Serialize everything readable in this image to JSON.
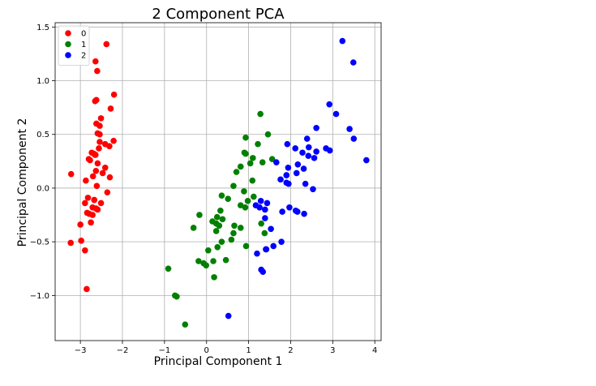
{
  "chart_data": {
    "type": "scatter",
    "title": "2 Component PCA",
    "xlabel": "Principal Component 1",
    "ylabel": "Principal Component 2",
    "xlim": [
      -3.6,
      4.15
    ],
    "ylim": [
      -1.42,
      1.54
    ],
    "xticks": [
      -3,
      -2,
      -1,
      0,
      1,
      2,
      3,
      4
    ],
    "xtick_labels": [
      "−3",
      "−2",
      "−1",
      "0",
      "1",
      "2",
      "3",
      "4"
    ],
    "yticks": [
      -1.0,
      -0.5,
      0.0,
      0.5,
      1.0,
      1.5
    ],
    "ytick_labels": [
      "−1.0",
      "−0.5",
      "0.0",
      "0.5",
      "1.0",
      "1.5"
    ],
    "grid": true,
    "legend_position": "top-left",
    "series": [
      {
        "name": "0",
        "color": "#ff0000",
        "points": [
          [
            -2.68,
            0.32
          ],
          [
            -2.71,
            -0.18
          ],
          [
            -2.89,
            -0.14
          ],
          [
            -2.75,
            -0.32
          ],
          [
            -2.73,
            0.33
          ],
          [
            -2.28,
            0.74
          ],
          [
            -2.82,
            -0.09
          ],
          [
            -2.63,
            0.16
          ],
          [
            -2.89,
            -0.58
          ],
          [
            -2.67,
            -0.11
          ],
          [
            -2.51,
            0.65
          ],
          [
            -2.61,
            0.02
          ],
          [
            -2.79,
            -0.24
          ],
          [
            -3.23,
            -0.51
          ],
          [
            -2.64,
            1.18
          ],
          [
            -2.38,
            1.34
          ],
          [
            -2.62,
            0.82
          ],
          [
            -2.65,
            0.31
          ],
          [
            -2.2,
            0.87
          ],
          [
            -2.59,
            0.51
          ],
          [
            -2.31,
            0.39
          ],
          [
            -2.54,
            0.43
          ],
          [
            -3.22,
            0.13
          ],
          [
            -2.3,
            0.1
          ],
          [
            -2.36,
            -0.04
          ],
          [
            -2.51,
            -0.14
          ],
          [
            -2.47,
            0.14
          ],
          [
            -2.56,
            0.37
          ],
          [
            -2.64,
            0.31
          ],
          [
            -2.63,
            -0.19
          ],
          [
            -2.59,
            -0.2
          ],
          [
            -2.41,
            0.41
          ],
          [
            -2.65,
            0.81
          ],
          [
            -2.6,
            1.09
          ],
          [
            -2.67,
            -0.11
          ],
          [
            -2.87,
            0.07
          ],
          [
            -2.62,
            0.6
          ],
          [
            -2.8,
            0.27
          ],
          [
            -2.98,
            -0.49
          ],
          [
            -2.59,
            0.23
          ],
          [
            -2.77,
            0.26
          ],
          [
            -2.85,
            -0.94
          ],
          [
            -3.0,
            -0.34
          ],
          [
            -2.41,
            0.19
          ],
          [
            -2.21,
            0.44
          ],
          [
            -2.71,
            -0.25
          ],
          [
            -2.54,
            0.5
          ],
          [
            -2.84,
            -0.23
          ],
          [
            -2.54,
            0.58
          ],
          [
            -2.7,
            0.11
          ]
        ]
      },
      {
        "name": "1",
        "color": "#008000",
        "points": [
          [
            1.28,
            0.69
          ],
          [
            0.93,
            0.32
          ],
          [
            1.46,
            0.5
          ],
          [
            0.18,
            -0.83
          ],
          [
            1.09,
            0.07
          ],
          [
            0.64,
            -0.42
          ],
          [
            1.1,
            0.28
          ],
          [
            -0.75,
            -1.0
          ],
          [
            1.04,
            0.23
          ],
          [
            -0.01,
            -0.72
          ],
          [
            -0.51,
            -1.27
          ],
          [
            0.51,
            -0.1
          ],
          [
            0.26,
            -0.55
          ],
          [
            0.98,
            -0.12
          ],
          [
            -0.17,
            -0.25
          ],
          [
            0.93,
            0.47
          ],
          [
            0.66,
            -0.35
          ],
          [
            0.23,
            -0.33
          ],
          [
            0.94,
            -0.54
          ],
          [
            0.04,
            -0.58
          ],
          [
            1.12,
            -0.08
          ],
          [
            0.36,
            -0.07
          ],
          [
            1.3,
            -0.33
          ],
          [
            0.92,
            -0.18
          ],
          [
            0.71,
            0.15
          ],
          [
            0.9,
            0.33
          ],
          [
            1.33,
            0.24
          ],
          [
            1.56,
            0.27
          ],
          [
            0.81,
            -0.16
          ],
          [
            -0.31,
            -0.37
          ],
          [
            -0.07,
            -0.7
          ],
          [
            -0.19,
            -0.68
          ],
          [
            0.14,
            -0.31
          ],
          [
            1.38,
            -0.42
          ],
          [
            0.59,
            -0.48
          ],
          [
            0.81,
            0.2
          ],
          [
            1.22,
            0.41
          ],
          [
            0.81,
            -0.37
          ],
          [
            0.25,
            -0.27
          ],
          [
            0.16,
            -0.68
          ],
          [
            0.46,
            -0.67
          ],
          [
            0.89,
            -0.03
          ],
          [
            0.23,
            -0.4
          ],
          [
            -0.71,
            -1.01
          ],
          [
            0.36,
            -0.5
          ],
          [
            0.33,
            -0.21
          ],
          [
            0.38,
            -0.29
          ],
          [
            0.64,
            0.02
          ],
          [
            -0.91,
            -0.75
          ],
          [
            0.3,
            -0.35
          ]
        ]
      },
      {
        "name": "2",
        "color": "#0000ff",
        "points": [
          [
            2.53,
            -0.01
          ],
          [
            1.41,
            -0.57
          ],
          [
            2.61,
            0.34
          ],
          [
            1.97,
            -0.18
          ],
          [
            2.35,
            0.04
          ],
          [
            3.4,
            0.55
          ],
          [
            0.52,
            -1.19
          ],
          [
            2.93,
            0.35
          ],
          [
            2.32,
            -0.24
          ],
          [
            2.92,
            0.78
          ],
          [
            1.66,
            0.24
          ],
          [
            1.8,
            -0.22
          ],
          [
            2.17,
            0.22
          ],
          [
            1.34,
            -0.78
          ],
          [
            1.59,
            -0.54
          ],
          [
            1.9,
            0.12
          ],
          [
            1.95,
            0.04
          ],
          [
            3.49,
            1.17
          ],
          [
            3.8,
            0.26
          ],
          [
            1.3,
            -0.76
          ],
          [
            2.43,
            0.38
          ],
          [
            1.2,
            -0.61
          ],
          [
            3.5,
            0.46
          ],
          [
            1.39,
            -0.2
          ],
          [
            2.28,
            0.33
          ],
          [
            2.61,
            0.56
          ],
          [
            1.26,
            -0.18
          ],
          [
            1.29,
            -0.12
          ],
          [
            2.12,
            -0.21
          ],
          [
            2.39,
            0.46
          ],
          [
            2.84,
            0.37
          ],
          [
            3.23,
            1.37
          ],
          [
            2.16,
            -0.22
          ],
          [
            1.44,
            -0.14
          ],
          [
            1.78,
            -0.5
          ],
          [
            3.08,
            0.69
          ],
          [
            2.14,
            0.14
          ],
          [
            1.9,
            0.05
          ],
          [
            1.17,
            -0.16
          ],
          [
            2.11,
            0.37
          ],
          [
            2.31,
            0.18
          ],
          [
            1.92,
            0.41
          ],
          [
            1.42,
            -0.57
          ],
          [
            2.56,
            0.28
          ],
          [
            2.42,
            0.3
          ],
          [
            1.94,
            0.19
          ],
          [
            1.53,
            -0.38
          ],
          [
            1.76,
            0.08
          ],
          [
            1.9,
            0.12
          ],
          [
            1.39,
            -0.28
          ]
        ]
      }
    ]
  }
}
